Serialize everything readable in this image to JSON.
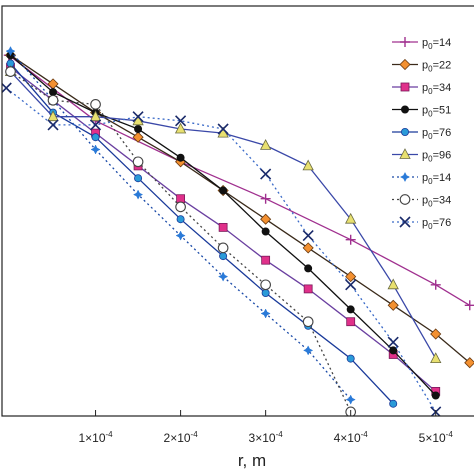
{
  "chart_data": {
    "type": "line",
    "xlabel": "r, m",
    "xlim": [
      -1e-05,
      0.000545
    ],
    "ylim": [
      0,
      1
    ],
    "x_ticks": [
      {
        "mantissa": "1",
        "exp": "-4",
        "value": 0.0001
      },
      {
        "mantissa": "2",
        "exp": "-4",
        "value": 0.0002
      },
      {
        "mantissa": "3",
        "exp": "-4",
        "value": 0.0003
      },
      {
        "mantissa": "4",
        "exp": "-4",
        "value": 0.0004
      },
      {
        "mantissa": "5",
        "exp": "-4",
        "value": 0.0005
      }
    ],
    "legend_position": "right",
    "series": [
      {
        "name": "p0=14",
        "label_base": "p",
        "label_sub": "0",
        "label_rest": "=14",
        "color": "#a0308f",
        "marker": "plus",
        "dash": "none",
        "x": [
          -2e-06,
          0.0001,
          0.0002,
          0.0003,
          0.0004,
          0.0005,
          0.00054
        ],
        "y": [
          0.88,
          0.72,
          0.62,
          0.53,
          0.43,
          0.32,
          0.27
        ]
      },
      {
        "name": "p0=22",
        "label_base": "p",
        "label_sub": "0",
        "label_rest": "=22",
        "color": "#3a2a1a",
        "marker": "diamond",
        "markerFill": "#f39030",
        "dash": "none",
        "x": [
          0,
          5e-05,
          0.0001,
          0.00015,
          0.0002,
          0.00025,
          0.0003,
          0.00035,
          0.0004,
          0.00045,
          0.0005,
          0.00054
        ],
        "y": [
          0.88,
          0.81,
          0.74,
          0.68,
          0.62,
          0.55,
          0.48,
          0.41,
          0.34,
          0.27,
          0.2,
          0.13
        ]
      },
      {
        "name": "p0=34",
        "label_base": "p",
        "label_sub": "0",
        "label_rest": "=34",
        "color": "#6a3fa0",
        "marker": "square",
        "markerFill": "#e0308a",
        "dash": "none",
        "x": [
          0,
          5e-05,
          0.0001,
          0.00015,
          0.0002,
          0.00025,
          0.0003,
          0.00035,
          0.0004,
          0.00045,
          0.0005
        ],
        "y": [
          0.85,
          0.77,
          0.69,
          0.61,
          0.53,
          0.46,
          0.38,
          0.31,
          0.23,
          0.15,
          0.06
        ]
      },
      {
        "name": "p0=51",
        "label_base": "p",
        "label_sub": "0",
        "label_rest": "=51",
        "color": "#111111",
        "marker": "circle",
        "markerFill": "#111111",
        "dash": "none",
        "x": [
          0,
          5e-05,
          0.0001,
          0.00015,
          0.0002,
          0.00025,
          0.0003,
          0.00035,
          0.0004,
          0.00045,
          0.0005
        ],
        "y": [
          0.88,
          0.79,
          0.74,
          0.7,
          0.63,
          0.55,
          0.45,
          0.36,
          0.26,
          0.16,
          0.05
        ]
      },
      {
        "name": "p0=76",
        "label_base": "p",
        "label_sub": "0",
        "label_rest": "=76",
        "color": "#1a3a9a",
        "marker": "circle",
        "markerFill": "#2a9ad8",
        "dash": "none",
        "x": [
          0,
          5e-05,
          0.0001,
          0.00015,
          0.0002,
          0.00025,
          0.0003,
          0.00035,
          0.0004,
          0.00045
        ],
        "y": [
          0.86,
          0.74,
          0.68,
          0.58,
          0.48,
          0.39,
          0.3,
          0.22,
          0.14,
          0.03
        ]
      },
      {
        "name": "p0=96",
        "label_base": "p",
        "label_sub": "0",
        "label_rest": "=96",
        "color": "#3a48a8",
        "marker": "triangle",
        "markerFill": "#e8e070",
        "dash": "none",
        "x": [
          0,
          5e-05,
          0.0001,
          0.00015,
          0.0002,
          0.00025,
          0.0003,
          0.00035,
          0.0004,
          0.00045,
          0.0005
        ],
        "y": [
          0.84,
          0.73,
          0.73,
          0.72,
          0.7,
          0.69,
          0.66,
          0.61,
          0.48,
          0.32,
          0.14
        ]
      },
      {
        "name": "p0=14",
        "label_base": "p",
        "label_sub": "0",
        "label_rest": "=14",
        "color": "#1a4aa8",
        "marker": "star4",
        "markerFill": "#2a7ad8",
        "dash": "2,3",
        "x": [
          0,
          5e-05,
          0.0001,
          0.00015,
          0.0002,
          0.00025,
          0.0003,
          0.00035,
          0.0004
        ],
        "y": [
          0.89,
          0.77,
          0.65,
          0.54,
          0.44,
          0.34,
          0.25,
          0.16,
          0.04
        ]
      },
      {
        "name": "p0=34",
        "label_base": "p",
        "label_sub": "0",
        "label_rest": "=34",
        "color": "#444444",
        "marker": "circle-open",
        "dash": "2,3",
        "x": [
          0,
          5e-05,
          0.0001,
          0.00015,
          0.0002,
          0.00025,
          0.0003,
          0.00035,
          0.0004
        ],
        "y": [
          0.84,
          0.77,
          0.76,
          0.62,
          0.51,
          0.41,
          0.32,
          0.23,
          0.01
        ]
      },
      {
        "name": "p0=76",
        "label_base": "p",
        "label_sub": "0",
        "label_rest": "=76",
        "color": "#3a6ac8",
        "marker": "x",
        "markerStroke": "#1a2a6a",
        "dash": "2,3",
        "x": [
          -5e-06,
          5e-05,
          0.0001,
          0.00015,
          0.0002,
          0.00025,
          0.0003,
          0.00035,
          0.0004,
          0.00045,
          0.0005
        ],
        "y": [
          0.8,
          0.71,
          0.71,
          0.73,
          0.72,
          0.7,
          0.59,
          0.44,
          0.32,
          0.18,
          0.01
        ]
      }
    ]
  }
}
